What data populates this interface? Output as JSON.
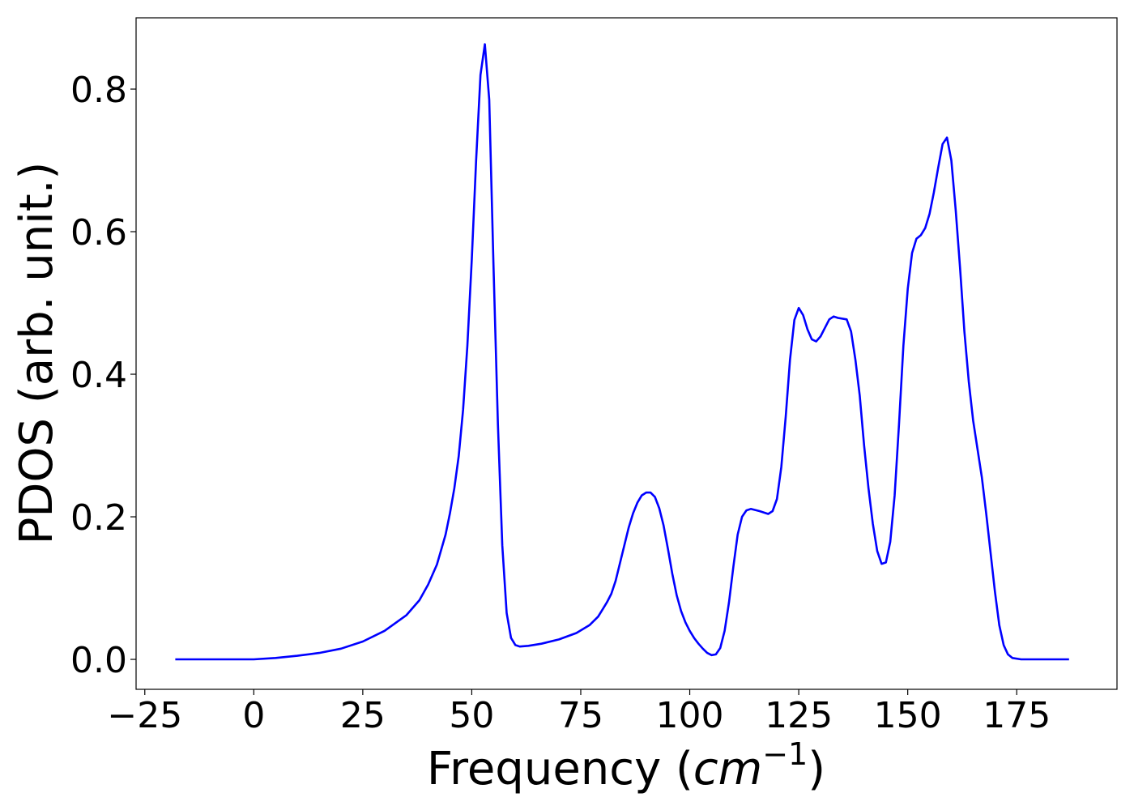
{
  "chart_data": {
    "type": "line",
    "title": "",
    "xlabel_prefix": "Frequency (",
    "xlabel_math": "cm",
    "xlabel_sup": "−1",
    "xlabel_suffix": ")",
    "ylabel": "PDOS (arb. unit.)",
    "xlim": [
      -27,
      198
    ],
    "ylim": [
      -0.042,
      0.9
    ],
    "x_ticks": [
      -25,
      0,
      25,
      50,
      75,
      100,
      125,
      150,
      175
    ],
    "x_tick_labels": [
      "−25",
      "0",
      "25",
      "50",
      "75",
      "100",
      "125",
      "150",
      "175"
    ],
    "y_ticks": [
      0.0,
      0.2,
      0.4,
      0.6,
      0.8
    ],
    "y_tick_labels": [
      "0.0",
      "0.2",
      "0.4",
      "0.6",
      "0.8"
    ],
    "grid": false,
    "series": [
      {
        "color": "#0000ff",
        "points": [
          [
            -18,
            0.0
          ],
          [
            0,
            0.0
          ],
          [
            5,
            0.002
          ],
          [
            10,
            0.005
          ],
          [
            15,
            0.009
          ],
          [
            20,
            0.015
          ],
          [
            25,
            0.025
          ],
          [
            30,
            0.04
          ],
          [
            35,
            0.062
          ],
          [
            38,
            0.083
          ],
          [
            40,
            0.105
          ],
          [
            42,
            0.133
          ],
          [
            44,
            0.175
          ],
          [
            45,
            0.205
          ],
          [
            46,
            0.24
          ],
          [
            47,
            0.285
          ],
          [
            48,
            0.35
          ],
          [
            49,
            0.44
          ],
          [
            50,
            0.56
          ],
          [
            51,
            0.7
          ],
          [
            52,
            0.82
          ],
          [
            53,
            0.863
          ],
          [
            54,
            0.785
          ],
          [
            55,
            0.55
          ],
          [
            56,
            0.33
          ],
          [
            57,
            0.16
          ],
          [
            58,
            0.065
          ],
          [
            59,
            0.03
          ],
          [
            60,
            0.02
          ],
          [
            61,
            0.018
          ],
          [
            63,
            0.019
          ],
          [
            66,
            0.022
          ],
          [
            70,
            0.028
          ],
          [
            74,
            0.037
          ],
          [
            77,
            0.048
          ],
          [
            79,
            0.06
          ],
          [
            80,
            0.07
          ],
          [
            81,
            0.08
          ],
          [
            82,
            0.092
          ],
          [
            83,
            0.11
          ],
          [
            84,
            0.135
          ],
          [
            85,
            0.16
          ],
          [
            86,
            0.185
          ],
          [
            87,
            0.205
          ],
          [
            88,
            0.22
          ],
          [
            89,
            0.23
          ],
          [
            90,
            0.234
          ],
          [
            91,
            0.234
          ],
          [
            92,
            0.228
          ],
          [
            93,
            0.212
          ],
          [
            94,
            0.188
          ],
          [
            95,
            0.155
          ],
          [
            96,
            0.12
          ],
          [
            97,
            0.09
          ],
          [
            98,
            0.068
          ],
          [
            99,
            0.052
          ],
          [
            100,
            0.04
          ],
          [
            101,
            0.03
          ],
          [
            102,
            0.022
          ],
          [
            103,
            0.015
          ],
          [
            104,
            0.009
          ],
          [
            105,
            0.006
          ],
          [
            106,
            0.007
          ],
          [
            107,
            0.016
          ],
          [
            108,
            0.04
          ],
          [
            109,
            0.08
          ],
          [
            110,
            0.13
          ],
          [
            111,
            0.175
          ],
          [
            112,
            0.2
          ],
          [
            113,
            0.209
          ],
          [
            114,
            0.211
          ],
          [
            116,
            0.208
          ],
          [
            118,
            0.204
          ],
          [
            119,
            0.208
          ],
          [
            120,
            0.225
          ],
          [
            121,
            0.27
          ],
          [
            122,
            0.34
          ],
          [
            123,
            0.42
          ],
          [
            124,
            0.476
          ],
          [
            125,
            0.493
          ],
          [
            126,
            0.483
          ],
          [
            127,
            0.463
          ],
          [
            128,
            0.449
          ],
          [
            129,
            0.446
          ],
          [
            130,
            0.453
          ],
          [
            131,
            0.465
          ],
          [
            132,
            0.477
          ],
          [
            133,
            0.481
          ],
          [
            134,
            0.479
          ],
          [
            136,
            0.477
          ],
          [
            137,
            0.46
          ],
          [
            138,
            0.42
          ],
          [
            139,
            0.37
          ],
          [
            140,
            0.3
          ],
          [
            141,
            0.24
          ],
          [
            142,
            0.19
          ],
          [
            143,
            0.152
          ],
          [
            144,
            0.134
          ],
          [
            145,
            0.136
          ],
          [
            146,
            0.165
          ],
          [
            147,
            0.23
          ],
          [
            148,
            0.33
          ],
          [
            149,
            0.44
          ],
          [
            150,
            0.52
          ],
          [
            151,
            0.57
          ],
          [
            152,
            0.59
          ],
          [
            153,
            0.595
          ],
          [
            154,
            0.605
          ],
          [
            155,
            0.625
          ],
          [
            156,
            0.655
          ],
          [
            157,
            0.69
          ],
          [
            158,
            0.723
          ],
          [
            159,
            0.732
          ],
          [
            160,
            0.7
          ],
          [
            161,
            0.63
          ],
          [
            162,
            0.55
          ],
          [
            163,
            0.46
          ],
          [
            164,
            0.39
          ],
          [
            165,
            0.335
          ],
          [
            166,
            0.295
          ],
          [
            167,
            0.255
          ],
          [
            168,
            0.205
          ],
          [
            169,
            0.15
          ],
          [
            170,
            0.095
          ],
          [
            171,
            0.048
          ],
          [
            172,
            0.02
          ],
          [
            173,
            0.007
          ],
          [
            174,
            0.002
          ],
          [
            176,
            0.0
          ],
          [
            187,
            0.0
          ]
        ]
      }
    ]
  }
}
